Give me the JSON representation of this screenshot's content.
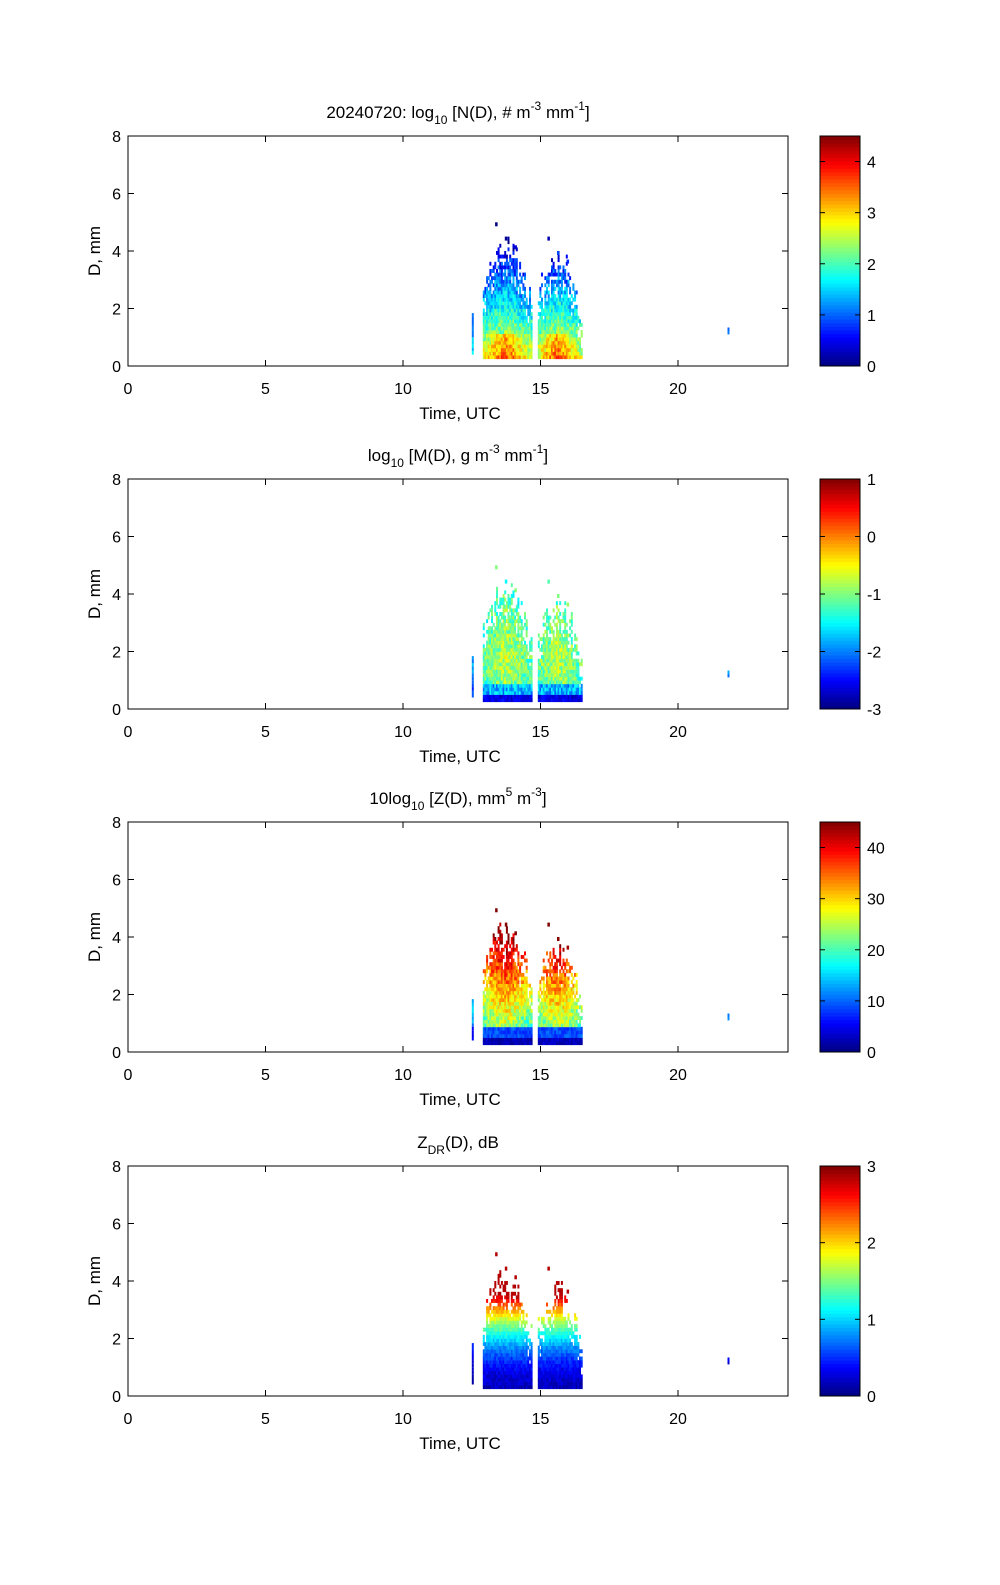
{
  "figure": {
    "date_prefix": "20240720: "
  },
  "shared_axes": {
    "xlabel": "Time, UTC",
    "ylabel": "D, mm",
    "xlim": [
      0,
      24
    ],
    "ylim": [
      0,
      8
    ],
    "xticks": [
      0,
      5,
      10,
      15,
      20
    ],
    "yticks": [
      0,
      2,
      4,
      6,
      8
    ]
  },
  "colormap": "jet",
  "chart_data": [
    {
      "type": "heatmap",
      "title": {
        "base": "log",
        "sub": "10",
        "rest": " [N(D), # m",
        "sup1": "-3",
        "mid": " mm",
        "sup2": "-1",
        "end": "]"
      },
      "xlabel": "Time, UTC",
      "ylabel": "D, mm",
      "xlim": [
        0,
        24
      ],
      "ylim": [
        0,
        8
      ],
      "colorbar": {
        "range": [
          0,
          4.5
        ],
        "ticks": [
          0,
          1,
          2,
          3,
          4
        ]
      },
      "field": "N",
      "rain_periods": [
        {
          "t_start": 12.9,
          "t_end": 14.7,
          "peak_t": 13.7,
          "max_d": 4.9
        },
        {
          "t_start": 14.9,
          "t_end": 16.5,
          "peak_t": 15.6,
          "max_d": 4.4
        }
      ],
      "isolated_points": [
        {
          "t": 12.5,
          "d_min": 0.4,
          "d_max": 1.8
        },
        {
          "t": 21.8,
          "d_min": 1.1,
          "d_max": 1.3
        }
      ]
    },
    {
      "type": "heatmap",
      "title": {
        "base": "log",
        "sub": "10",
        "rest": " [M(D), g m",
        "sup1": "-3",
        "mid": " mm",
        "sup2": "-1",
        "end": "]"
      },
      "xlabel": "Time, UTC",
      "ylabel": "D, mm",
      "xlim": [
        0,
        24
      ],
      "ylim": [
        0,
        8
      ],
      "colorbar": {
        "range": [
          -3,
          1
        ],
        "ticks": [
          -3,
          -2,
          -1,
          0,
          1
        ]
      },
      "field": "M",
      "rain_periods": [
        {
          "t_start": 12.9,
          "t_end": 14.7,
          "peak_t": 13.7,
          "max_d": 4.9
        },
        {
          "t_start": 14.9,
          "t_end": 16.5,
          "peak_t": 15.6,
          "max_d": 4.4
        }
      ],
      "isolated_points": [
        {
          "t": 12.5,
          "d_min": 0.4,
          "d_max": 1.8
        },
        {
          "t": 21.8,
          "d_min": 1.1,
          "d_max": 1.3
        }
      ]
    },
    {
      "type": "heatmap",
      "title": {
        "base": "10log",
        "sub": "10",
        "rest": " [Z(D),  mm",
        "sup1": "5",
        "mid": " m",
        "sup2": "-3",
        "end": "]"
      },
      "xlabel": "Time, UTC",
      "ylabel": "D, mm",
      "xlim": [
        0,
        24
      ],
      "ylim": [
        0,
        8
      ],
      "colorbar": {
        "range": [
          0,
          45
        ],
        "ticks": [
          0,
          10,
          20,
          30,
          40
        ]
      },
      "field": "Z",
      "rain_periods": [
        {
          "t_start": 12.9,
          "t_end": 14.7,
          "peak_t": 13.7,
          "max_d": 4.9
        },
        {
          "t_start": 14.9,
          "t_end": 16.5,
          "peak_t": 15.6,
          "max_d": 4.4
        }
      ],
      "isolated_points": [
        {
          "t": 12.5,
          "d_min": 0.4,
          "d_max": 1.8
        },
        {
          "t": 21.8,
          "d_min": 1.1,
          "d_max": 1.3
        }
      ]
    },
    {
      "type": "heatmap",
      "title": {
        "base": "Z",
        "sub": "DR",
        "rest": "(D), dB",
        "sup1": "",
        "mid": "",
        "sup2": "",
        "end": ""
      },
      "xlabel": "Time, UTC",
      "ylabel": "D, mm",
      "xlim": [
        0,
        24
      ],
      "ylim": [
        0,
        8
      ],
      "colorbar": {
        "range": [
          0,
          3
        ],
        "ticks": [
          0,
          1,
          2,
          3
        ]
      },
      "field": "ZDR",
      "rain_periods": [
        {
          "t_start": 12.9,
          "t_end": 14.7,
          "peak_t": 13.7,
          "max_d": 4.9
        },
        {
          "t_start": 14.9,
          "t_end": 16.5,
          "peak_t": 15.6,
          "max_d": 4.4
        }
      ],
      "isolated_points": [
        {
          "t": 12.5,
          "d_min": 0.4,
          "d_max": 1.8
        },
        {
          "t": 21.8,
          "d_min": 1.1,
          "d_max": 1.3
        }
      ]
    }
  ]
}
